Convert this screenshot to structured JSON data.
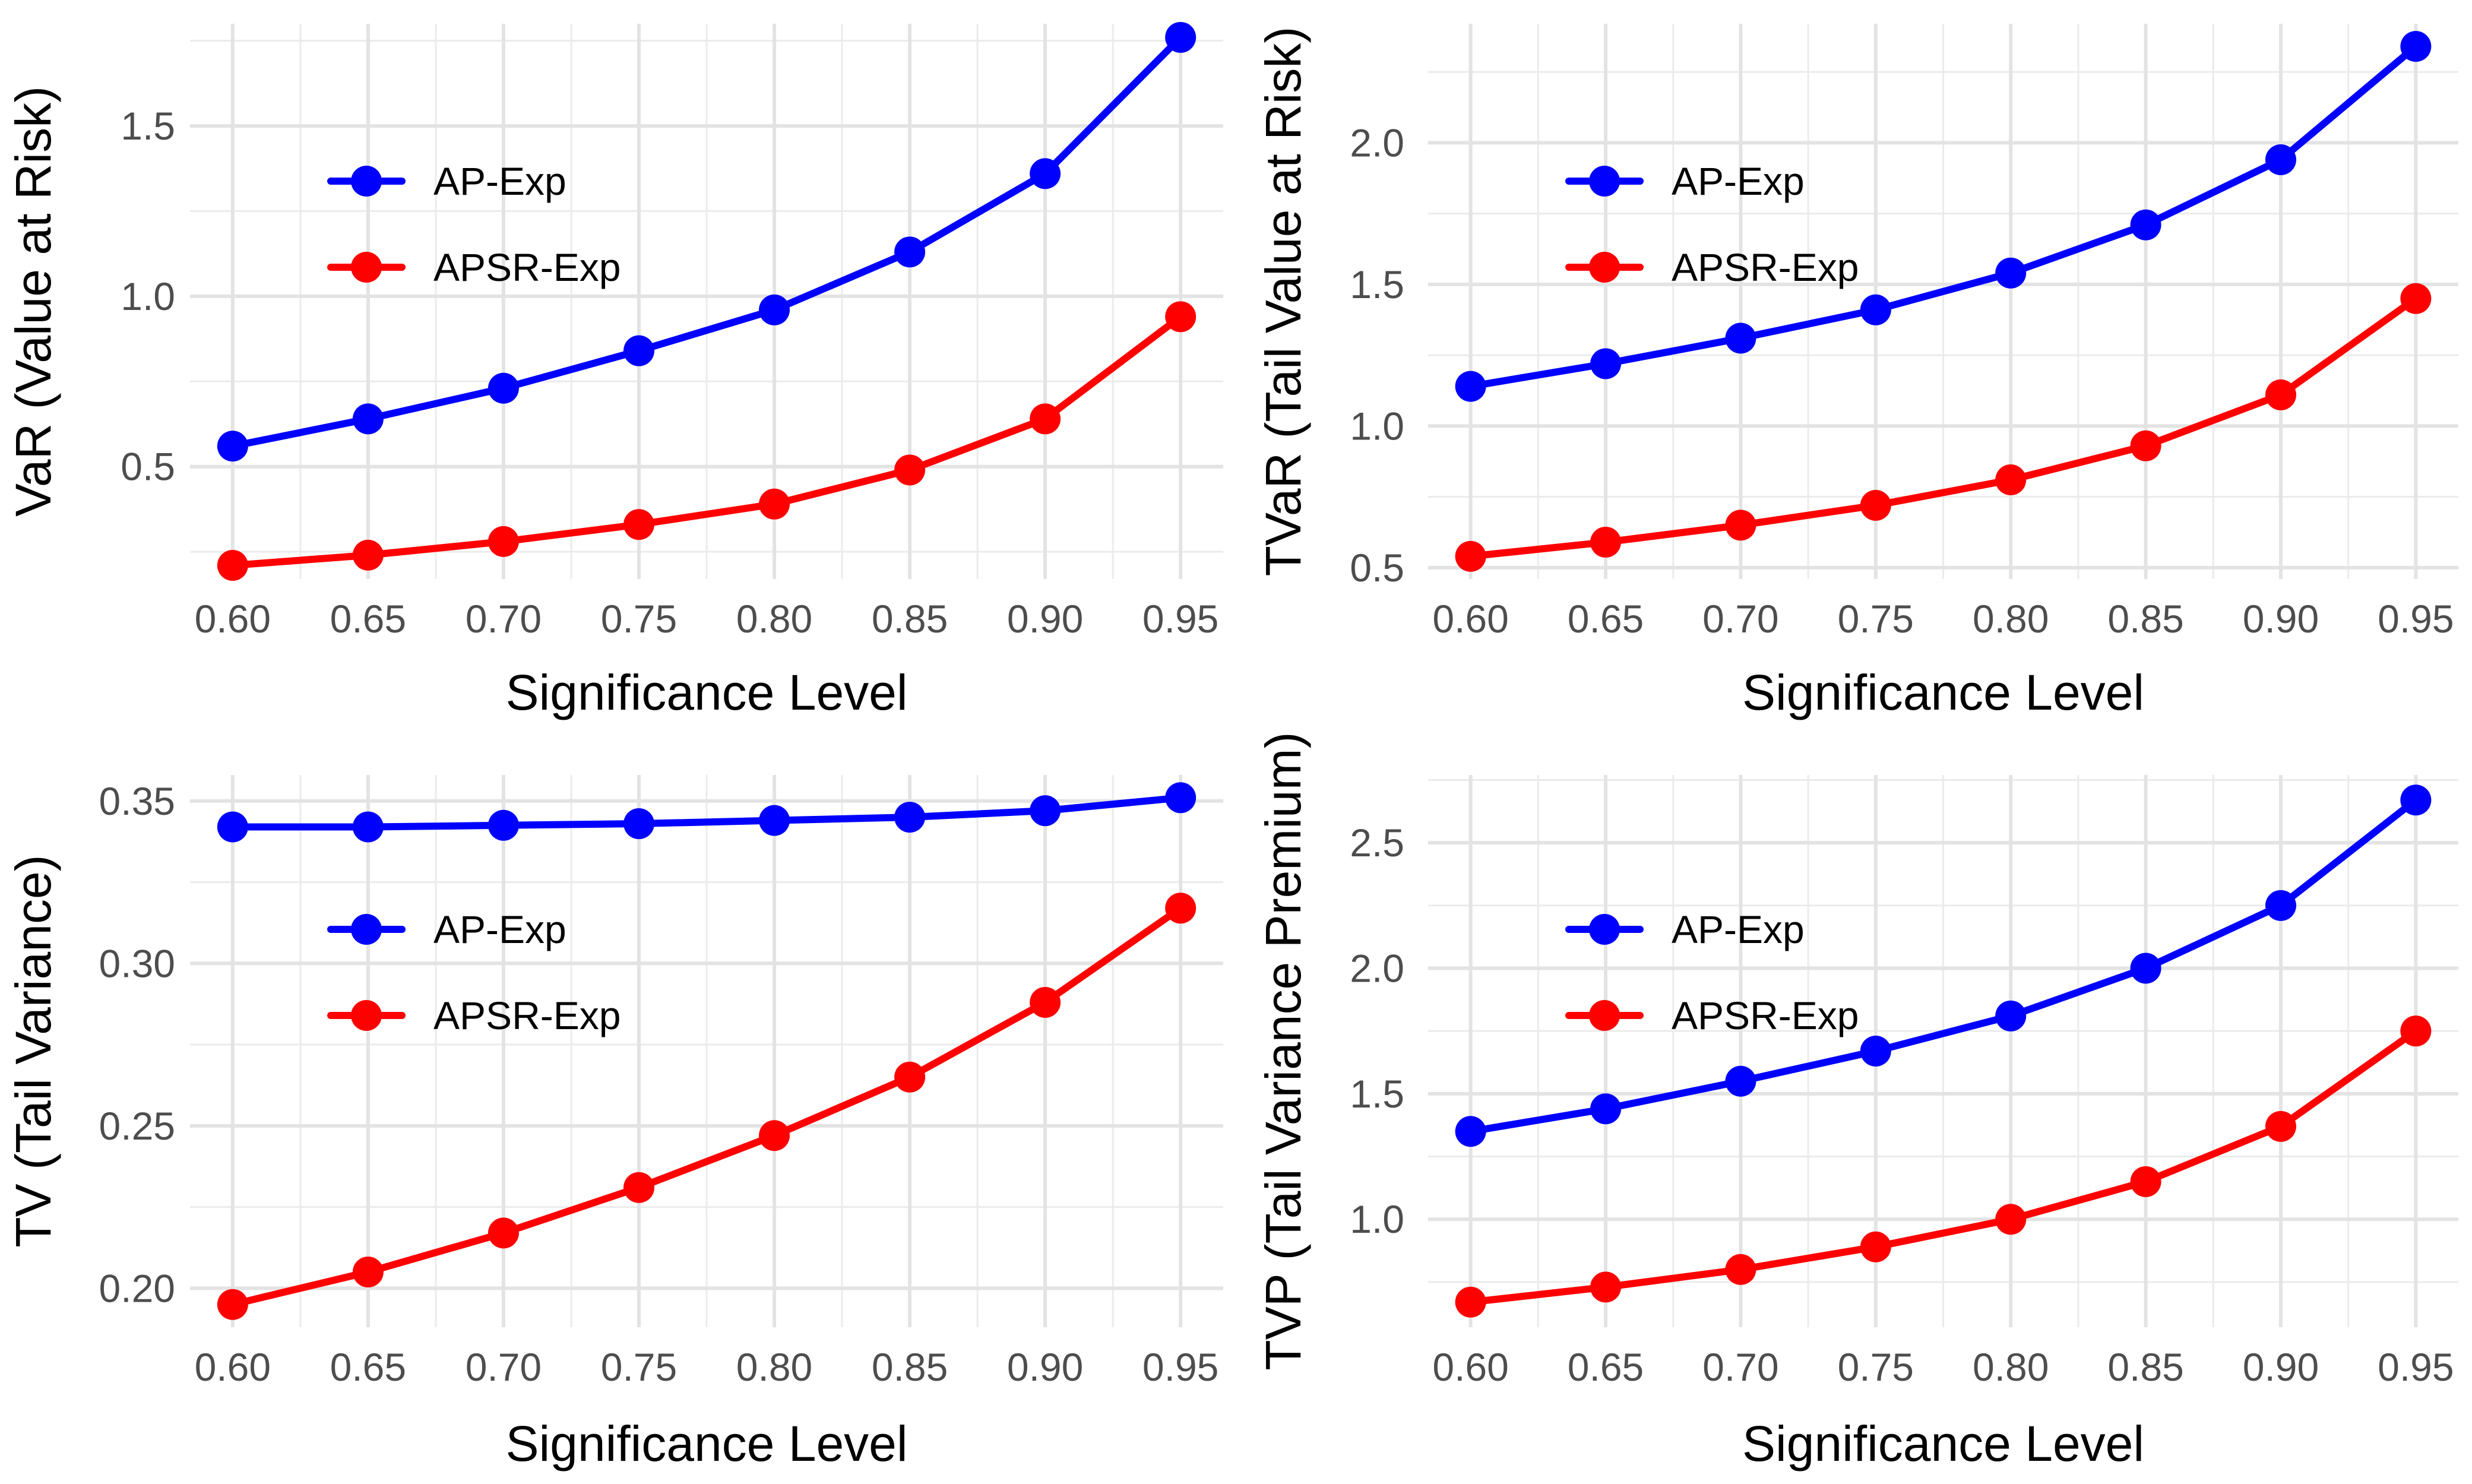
{
  "chart_data": [
    {
      "type": "line",
      "xlabel": "Significance Level",
      "ylabel": "VaR (Value at Risk)",
      "x": [
        0.6,
        0.65,
        0.7,
        0.75,
        0.8,
        0.85,
        0.9,
        0.95
      ],
      "x_tick_labels": [
        "0.60",
        "0.65",
        "0.70",
        "0.75",
        "0.80",
        "0.85",
        "0.90",
        "0.95"
      ],
      "y_ticks": [
        0.5,
        1.0,
        1.5
      ],
      "y_tick_labels": [
        "0.5",
        "1.0",
        "1.5"
      ],
      "ylim": [
        0.17,
        1.8
      ],
      "grid": true,
      "legend_position": "upper-left",
      "series": [
        {
          "name": "AP-Exp",
          "color": "#0000ff",
          "values": [
            0.56,
            0.64,
            0.73,
            0.84,
            0.96,
            1.13,
            1.36,
            1.76
          ]
        },
        {
          "name": "APSR-Exp",
          "color": "#ff0000",
          "values": [
            0.21,
            0.24,
            0.28,
            0.33,
            0.39,
            0.49,
            0.64,
            0.94
          ]
        }
      ]
    },
    {
      "type": "line",
      "xlabel": "Significance Level",
      "ylabel": "TVaR (Tail Value at Risk)",
      "x": [
        0.6,
        0.65,
        0.7,
        0.75,
        0.8,
        0.85,
        0.9,
        0.95
      ],
      "x_tick_labels": [
        "0.60",
        "0.65",
        "0.70",
        "0.75",
        "0.80",
        "0.85",
        "0.90",
        "0.95"
      ],
      "y_ticks": [
        0.5,
        1.0,
        1.5,
        2.0
      ],
      "y_tick_labels": [
        "0.5",
        "1.0",
        "1.5",
        "2.0"
      ],
      "ylim": [
        0.46,
        2.42
      ],
      "grid": true,
      "legend_position": "upper-left",
      "series": [
        {
          "name": "AP-Exp",
          "color": "#0000ff",
          "values": [
            1.14,
            1.22,
            1.31,
            1.41,
            1.54,
            1.71,
            1.94,
            2.34
          ]
        },
        {
          "name": "APSR-Exp",
          "color": "#ff0000",
          "values": [
            0.54,
            0.59,
            0.65,
            0.72,
            0.81,
            0.93,
            1.11,
            1.45
          ]
        }
      ]
    },
    {
      "type": "line",
      "xlabel": "Significance Level",
      "ylabel": "TV (Tail Variance)",
      "x": [
        0.6,
        0.65,
        0.7,
        0.75,
        0.8,
        0.85,
        0.9,
        0.95
      ],
      "x_tick_labels": [
        "0.60",
        "0.65",
        "0.70",
        "0.75",
        "0.80",
        "0.85",
        "0.90",
        "0.95"
      ],
      "y_ticks": [
        0.2,
        0.25,
        0.3,
        0.35
      ],
      "y_tick_labels": [
        "0.20",
        "0.25",
        "0.30",
        "0.35"
      ],
      "ylim": [
        0.188,
        0.358
      ],
      "grid": true,
      "legend_position": "upper-left",
      "series": [
        {
          "name": "AP-Exp",
          "color": "#0000ff",
          "values": [
            0.342,
            0.342,
            0.3425,
            0.343,
            0.344,
            0.345,
            0.347,
            0.351
          ]
        },
        {
          "name": "APSR-Exp",
          "color": "#ff0000",
          "values": [
            0.195,
            0.205,
            0.217,
            0.231,
            0.247,
            0.265,
            0.288,
            0.317
          ]
        }
      ]
    },
    {
      "type": "line",
      "xlabel": "Significance Level",
      "ylabel": "TVP (Tail Variance Premium)",
      "x": [
        0.6,
        0.65,
        0.7,
        0.75,
        0.8,
        0.85,
        0.9,
        0.95
      ],
      "x_tick_labels": [
        "0.60",
        "0.65",
        "0.70",
        "0.75",
        "0.80",
        "0.85",
        "0.90",
        "0.95"
      ],
      "y_ticks": [
        1.0,
        1.5,
        2.0,
        2.5
      ],
      "y_tick_labels": [
        "1.0",
        "1.5",
        "2.0",
        "2.5"
      ],
      "ylim": [
        0.57,
        2.77
      ],
      "grid": true,
      "legend_position": "upper-left",
      "series": [
        {
          "name": "AP-Exp",
          "color": "#0000ff",
          "values": [
            1.35,
            1.44,
            1.55,
            1.67,
            1.81,
            2.0,
            2.25,
            2.67
          ]
        },
        {
          "name": "APSR-Exp",
          "color": "#ff0000",
          "values": [
            0.67,
            0.73,
            0.8,
            0.89,
            1.0,
            1.15,
            1.37,
            1.75
          ]
        }
      ]
    }
  ]
}
